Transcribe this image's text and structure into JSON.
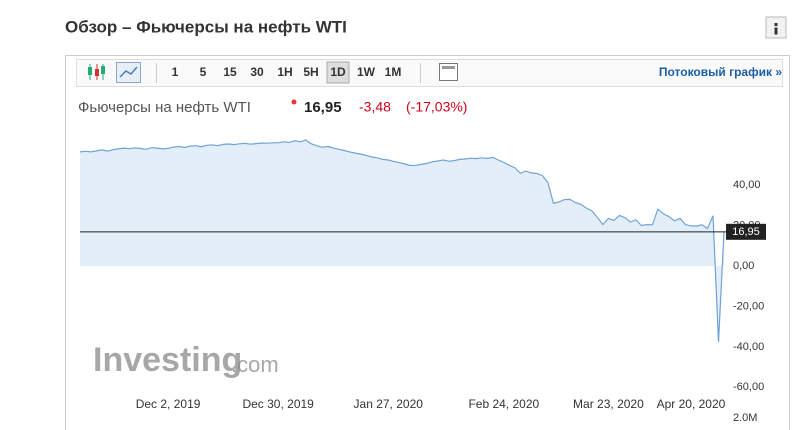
{
  "header": {
    "title": "Обзор – Фьючерсы на нефть WTI"
  },
  "toolbar": {
    "timeframes": [
      "1",
      "5",
      "15",
      "30",
      "1H",
      "5H",
      "1D",
      "1W",
      "1M"
    ],
    "selected_index": 6,
    "streaming_link": "Потоковый график »"
  },
  "quote": {
    "name": "Фьючерсы на нефть WTI",
    "last": "16,95",
    "change": "-3,48",
    "change_pct": "(-17,03%)"
  },
  "watermark": {
    "brand": "Investing",
    "suffix": ".com"
  },
  "chart_data": {
    "type": "area",
    "color": "#6fa3d8",
    "fill": "#e4eef9",
    "grid": false,
    "values": [
      56.5,
      56.8,
      56.5,
      57.0,
      57.5,
      56.9,
      57.6,
      58.0,
      58.4,
      58.1,
      58.5,
      58.2,
      57.8,
      58.6,
      58.4,
      58.0,
      58.3,
      58.9,
      59.2,
      58.7,
      59.4,
      59.6,
      59.1,
      59.8,
      60.0,
      59.6,
      60.2,
      60.4,
      60.1,
      60.5,
      60.7,
      60.3,
      60.6,
      60.9,
      60.8,
      61.0,
      61.0,
      61.5,
      61.2,
      62.0,
      61.5,
      62.4,
      60.5,
      59.6,
      58.8,
      59.2,
      58.5,
      57.8,
      57.2,
      56.5,
      55.9,
      55.4,
      54.8,
      54.0,
      53.6,
      52.8,
      52.5,
      51.8,
      51.2,
      50.5,
      49.8,
      49.9,
      50.3,
      50.8,
      51.6,
      52.0,
      52.5,
      51.9,
      52.2,
      52.8,
      53.0,
      53.4,
      53.2,
      53.6,
      53.3,
      53.8,
      52.5,
      51.3,
      49.9,
      48.7,
      45.9,
      47.0,
      46.1,
      45.8,
      44.8,
      41.3,
      31.1,
      31.7,
      32.9,
      33.0,
      31.4,
      30.5,
      28.7,
      27.3,
      24.0,
      20.5,
      23.6,
      22.6,
      25.1,
      24.0,
      21.8,
      22.9,
      20.1,
      20.5,
      20.4,
      28.2,
      25.8,
      24.5,
      22.4,
      23.6,
      20.5,
      19.9,
      19.8,
      20.4,
      18.6,
      24.9,
      -37.63,
      16.95
    ],
    "xlim": [
      0,
      117
    ],
    "xticks": [
      {
        "value": 16,
        "label": "Dec 2, 2019"
      },
      {
        "value": 36,
        "label": "Dec 30, 2019"
      },
      {
        "value": 56,
        "label": "Jan 27, 2020"
      },
      {
        "value": 77,
        "label": "Feb 24, 2020"
      },
      {
        "value": 96,
        "label": "Mar 23, 2020"
      },
      {
        "value": 111,
        "label": "Apr 20, 2020"
      }
    ],
    "ylim": [
      -66.3,
      62.4
    ],
    "yticks": [
      {
        "value": 40,
        "label": "40,00"
      },
      {
        "value": 20,
        "label": "20,00"
      },
      {
        "value": 0,
        "label": "0,00"
      },
      {
        "value": -20,
        "label": "-20,00"
      },
      {
        "value": -40,
        "label": "-40,00"
      },
      {
        "value": -60,
        "label": "-60,00"
      }
    ],
    "current_price": {
      "value": 16.95,
      "label": "16,95"
    },
    "volume_axis_label": "2.0M"
  }
}
